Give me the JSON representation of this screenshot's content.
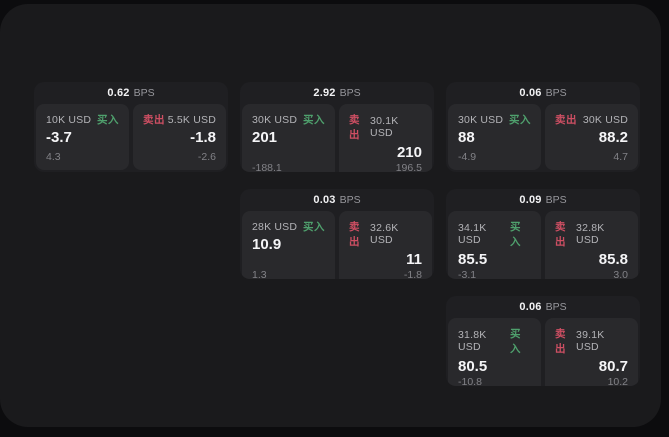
{
  "labels": {
    "bps_unit": "BPS",
    "buy": "买入",
    "sell": "卖出"
  },
  "colors": {
    "page_background": "#0c0c0e",
    "window_background": "#1a1a1c",
    "card_background": "#1f1f22",
    "panel_background": "#29292c",
    "buy_green": "#4fa06d",
    "sell_red": "#ce4f63",
    "value_white": "#f5f5f7",
    "label_gray": "#b3b3b7",
    "sub_gray": "#828287"
  },
  "cards": [
    {
      "row": 1,
      "col": 1,
      "bps": "0.62",
      "buy": {
        "amount": "10K USD",
        "value": "-3.7",
        "sub": "4.3"
      },
      "sell": {
        "amount": "5.5K USD",
        "value": "-1.8",
        "sub": "-2.6"
      }
    },
    {
      "row": 1,
      "col": 2,
      "bps": "2.92",
      "buy": {
        "amount": "30K USD",
        "value": "201",
        "sub": "-188.1"
      },
      "sell": {
        "amount": "30.1K USD",
        "value": "210",
        "sub": "196.5"
      }
    },
    {
      "row": 1,
      "col": 3,
      "bps": "0.06",
      "buy": {
        "amount": "30K USD",
        "value": "88",
        "sub": "-4.9"
      },
      "sell": {
        "amount": "30K USD",
        "value": "88.2",
        "sub": "4.7"
      }
    },
    {
      "row": 2,
      "col": 2,
      "bps": "0.03",
      "buy": {
        "amount": "28K USD",
        "value": "10.9",
        "sub": "1.3"
      },
      "sell": {
        "amount": "32.6K USD",
        "value": "11",
        "sub": "-1.8"
      }
    },
    {
      "row": 2,
      "col": 3,
      "bps": "0.09",
      "buy": {
        "amount": "34.1K USD",
        "value": "85.5",
        "sub": "-3.1"
      },
      "sell": {
        "amount": "32.8K USD",
        "value": "85.8",
        "sub": "3.0"
      }
    },
    {
      "row": 3,
      "col": 3,
      "bps": "0.06",
      "buy": {
        "amount": "31.8K USD",
        "value": "80.5",
        "sub": "-10.8"
      },
      "sell": {
        "amount": "39.1K USD",
        "value": "80.7",
        "sub": "10.2"
      }
    }
  ]
}
